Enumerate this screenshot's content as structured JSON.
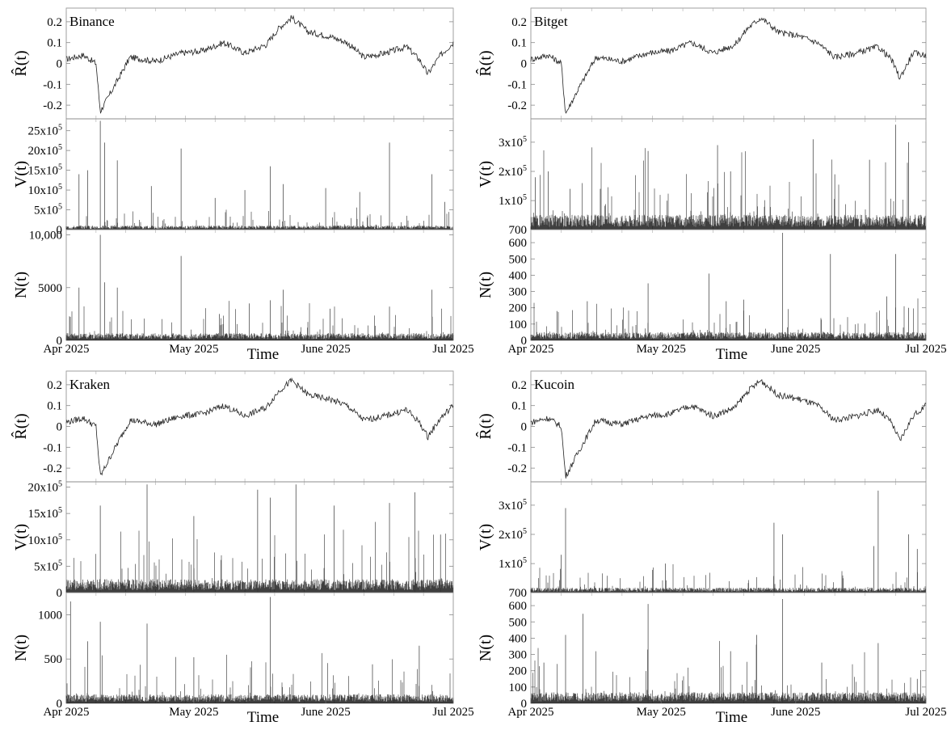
{
  "chart_data": [
    {
      "type": "line",
      "exchange": "Binance",
      "x_tick_labels": [
        "Apr 2025",
        "May 2025",
        "June 2025",
        "Jul 2025"
      ],
      "xlabel": "Time",
      "x_range": [
        "2025-04-01",
        "2025-07-01"
      ],
      "panels": [
        {
          "metric": "returns",
          "ylabel": "R̂(t)",
          "ylim": [
            -0.25,
            0.25
          ],
          "yticks": [
            -0.2,
            -0.1,
            0,
            0.1,
            0.2
          ],
          "ytick_labels": [
            "-0.2",
            "-0.1",
            "0",
            "0.1",
            "0.2"
          ],
          "x": [
            "2025-04-01",
            "2025-04-05",
            "2025-04-08",
            "2025-04-09",
            "2025-04-12",
            "2025-04-16",
            "2025-04-22",
            "2025-04-28",
            "2025-05-03",
            "2025-05-08",
            "2025-05-13",
            "2025-05-18",
            "2025-05-21",
            "2025-05-24",
            "2025-05-28",
            "2025-06-02",
            "2025-06-06",
            "2025-06-10",
            "2025-06-15",
            "2025-06-20",
            "2025-06-23",
            "2025-06-25",
            "2025-06-28",
            "2025-07-01"
          ],
          "values": [
            0.02,
            0.04,
            0.0,
            -0.23,
            -0.12,
            0.03,
            0.01,
            0.05,
            0.06,
            0.1,
            0.05,
            0.09,
            0.17,
            0.22,
            0.15,
            0.13,
            0.1,
            0.03,
            0.05,
            0.08,
            0.02,
            -0.05,
            0.04,
            0.1
          ]
        },
        {
          "metric": "volume",
          "ylabel": "V(t)",
          "ylim": [
            0,
            2800000
          ],
          "yticks": [
            0,
            500000,
            1000000,
            1500000,
            2000000,
            2500000
          ],
          "ytick_labels": [
            "0",
            "5x10^5",
            "10x10^5",
            "15x10^5",
            "20x10^5",
            "25x10^5"
          ],
          "baseline": 60000,
          "spikes": [
            {
              "x": "2025-04-04",
              "value": 1400000
            },
            {
              "x": "2025-04-06",
              "value": 1500000
            },
            {
              "x": "2025-04-09",
              "value": 2750000
            },
            {
              "x": "2025-04-10",
              "value": 2200000
            },
            {
              "x": "2025-04-13",
              "value": 1750000
            },
            {
              "x": "2025-04-21",
              "value": 1100000
            },
            {
              "x": "2025-04-28",
              "value": 2050000
            },
            {
              "x": "2025-05-06",
              "value": 800000
            },
            {
              "x": "2025-05-13",
              "value": 1000000
            },
            {
              "x": "2025-05-19",
              "value": 1600000
            },
            {
              "x": "2025-05-22",
              "value": 1150000
            },
            {
              "x": "2025-06-01",
              "value": 1050000
            },
            {
              "x": "2025-06-09",
              "value": 950000
            },
            {
              "x": "2025-06-16",
              "value": 2200000
            },
            {
              "x": "2025-06-26",
              "value": 1400000
            },
            {
              "x": "2025-06-29",
              "value": 700000
            }
          ]
        },
        {
          "metric": "trades",
          "ylabel": "N(t)",
          "ylim": [
            0,
            10500
          ],
          "yticks": [
            0,
            5000,
            10000
          ],
          "ytick_labels": [
            "0",
            "5000",
            "10,000"
          ],
          "baseline": 400,
          "spikes": [
            {
              "x": "2025-04-04",
              "value": 5000
            },
            {
              "x": "2025-04-09",
              "value": 10000
            },
            {
              "x": "2025-04-10",
              "value": 5500
            },
            {
              "x": "2025-04-13",
              "value": 5000
            },
            {
              "x": "2025-04-28",
              "value": 8000
            },
            {
              "x": "2025-05-07",
              "value": 2500
            },
            {
              "x": "2025-05-14",
              "value": 3500
            },
            {
              "x": "2025-05-19",
              "value": 3800
            },
            {
              "x": "2025-05-22",
              "value": 4800
            },
            {
              "x": "2025-06-02",
              "value": 3000
            },
            {
              "x": "2025-06-16",
              "value": 3200
            },
            {
              "x": "2025-06-26",
              "value": 4800
            }
          ]
        }
      ]
    },
    {
      "type": "line",
      "exchange": "Bitget",
      "x_tick_labels": [
        "Apr 2025",
        "May 2025",
        "June 2025",
        "Jul 2025"
      ],
      "xlabel": "Time",
      "x_range": [
        "2025-04-01",
        "2025-07-01"
      ],
      "panels": [
        {
          "metric": "returns",
          "ylabel": "R̂(t)",
          "ylim": [
            -0.25,
            0.25
          ],
          "yticks": [
            -0.2,
            -0.1,
            0,
            0.1,
            0.2
          ],
          "ytick_labels": [
            "-0.2",
            "-0.1",
            "0",
            "0.1",
            "0.2"
          ],
          "x": [
            "2025-04-01",
            "2025-04-05",
            "2025-04-08",
            "2025-04-09",
            "2025-04-12",
            "2025-04-16",
            "2025-04-22",
            "2025-04-28",
            "2025-05-03",
            "2025-05-08",
            "2025-05-13",
            "2025-05-18",
            "2025-05-21",
            "2025-05-24",
            "2025-05-28",
            "2025-06-02",
            "2025-06-06",
            "2025-06-10",
            "2025-06-15",
            "2025-06-20",
            "2025-06-23",
            "2025-06-25",
            "2025-06-28",
            "2025-07-01"
          ],
          "values": [
            0.02,
            0.04,
            0.0,
            -0.24,
            -0.12,
            0.03,
            0.01,
            0.05,
            0.06,
            0.1,
            0.05,
            0.09,
            0.17,
            0.22,
            0.15,
            0.13,
            0.1,
            0.03,
            0.05,
            0.08,
            0.02,
            -0.07,
            0.05,
            0.04
          ]
        },
        {
          "metric": "volume",
          "ylabel": "V(t)",
          "ylim": [
            700,
            380000
          ],
          "yticks": [
            700,
            100000,
            200000,
            300000
          ],
          "ytick_labels": [
            "700",
            "1x10^5",
            "2x10^5",
            "3x10^5"
          ],
          "baseline": 30000,
          "spikes": [
            {
              "x": "2025-04-02",
              "value": 180000
            },
            {
              "x": "2025-04-05",
              "value": 200000
            },
            {
              "x": "2025-04-10",
              "value": 140000
            },
            {
              "x": "2025-04-17",
              "value": 140000
            },
            {
              "x": "2025-04-28",
              "value": 270000
            },
            {
              "x": "2025-05-14",
              "value": 290000
            },
            {
              "x": "2025-05-17",
              "value": 200000
            },
            {
              "x": "2025-06-05",
              "value": 310000
            },
            {
              "x": "2025-06-10",
              "value": 190000
            },
            {
              "x": "2025-06-18",
              "value": 240000
            },
            {
              "x": "2025-06-24",
              "value": 360000
            },
            {
              "x": "2025-06-27",
              "value": 300000
            }
          ]
        },
        {
          "metric": "trades",
          "ylabel": "N(t)",
          "ylim": [
            0,
            680
          ],
          "yticks": [
            0,
            100,
            200,
            300,
            400,
            500,
            600
          ],
          "ytick_labels": [
            "0",
            "100",
            "200",
            "300",
            "400",
            "500",
            "600"
          ],
          "baseline": 30,
          "spikes": [
            {
              "x": "2025-04-07",
              "value": 180
            },
            {
              "x": "2025-04-14",
              "value": 240
            },
            {
              "x": "2025-04-28",
              "value": 350
            },
            {
              "x": "2025-05-12",
              "value": 410
            },
            {
              "x": "2025-05-16",
              "value": 240
            },
            {
              "x": "2025-05-20",
              "value": 250
            },
            {
              "x": "2025-05-29",
              "value": 660
            },
            {
              "x": "2025-06-09",
              "value": 530
            },
            {
              "x": "2025-06-22",
              "value": 270
            },
            {
              "x": "2025-06-24",
              "value": 530
            },
            {
              "x": "2025-06-27",
              "value": 200
            }
          ]
        }
      ]
    },
    {
      "type": "line",
      "exchange": "Kraken",
      "x_tick_labels": [
        "Apr 2025",
        "May 2025",
        "June 2025",
        "Jul 2025"
      ],
      "xlabel": "Time",
      "x_range": [
        "2025-04-01",
        "2025-07-01"
      ],
      "panels": [
        {
          "metric": "returns",
          "ylabel": "R̂(t)",
          "ylim": [
            -0.25,
            0.25
          ],
          "yticks": [
            -0.2,
            -0.1,
            0,
            0.1,
            0.2
          ],
          "ytick_labels": [
            "-0.2",
            "-0.1",
            "0",
            "0.1",
            "0.2"
          ],
          "x": [
            "2025-04-01",
            "2025-04-05",
            "2025-04-08",
            "2025-04-09",
            "2025-04-12",
            "2025-04-16",
            "2025-04-22",
            "2025-04-28",
            "2025-05-03",
            "2025-05-08",
            "2025-05-13",
            "2025-05-18",
            "2025-05-21",
            "2025-05-24",
            "2025-05-28",
            "2025-06-02",
            "2025-06-06",
            "2025-06-10",
            "2025-06-15",
            "2025-06-20",
            "2025-06-23",
            "2025-06-25",
            "2025-06-28",
            "2025-07-01"
          ],
          "values": [
            0.02,
            0.04,
            0.0,
            -0.24,
            -0.12,
            0.03,
            0.01,
            0.05,
            0.06,
            0.1,
            0.05,
            0.09,
            0.17,
            0.22,
            0.15,
            0.13,
            0.1,
            0.03,
            0.05,
            0.08,
            0.02,
            -0.05,
            0.04,
            0.1
          ]
        },
        {
          "metric": "volume",
          "ylabel": "V(t)",
          "ylim": [
            0,
            2100000
          ],
          "yticks": [
            0,
            500000,
            1000000,
            1500000,
            2000000
          ],
          "ytick_labels": [
            "0",
            "5x10^5",
            "10x10^5",
            "15x10^5",
            "20x10^5"
          ],
          "baseline": 150000,
          "spikes": [
            {
              "x": "2025-04-09",
              "value": 1650000
            },
            {
              "x": "2025-04-20",
              "value": 2050000
            },
            {
              "x": "2025-05-01",
              "value": 1450000
            },
            {
              "x": "2025-05-16",
              "value": 1950000
            },
            {
              "x": "2025-05-19",
              "value": 1800000
            },
            {
              "x": "2025-05-25",
              "value": 2050000
            },
            {
              "x": "2025-06-03",
              "value": 1650000
            },
            {
              "x": "2025-06-16",
              "value": 1700000
            },
            {
              "x": "2025-06-22",
              "value": 1900000
            },
            {
              "x": "2025-06-28",
              "value": 1100000
            }
          ]
        },
        {
          "metric": "trades",
          "ylabel": "N(t)",
          "ylim": [
            0,
            1250
          ],
          "yticks": [
            0,
            500,
            1000
          ],
          "ytick_labels": [
            "0",
            "500",
            "1000"
          ],
          "baseline": 60,
          "spikes": [
            {
              "x": "2025-04-02",
              "value": 1150
            },
            {
              "x": "2025-04-06",
              "value": 700
            },
            {
              "x": "2025-04-09",
              "value": 920
            },
            {
              "x": "2025-04-20",
              "value": 900
            },
            {
              "x": "2025-05-01",
              "value": 520
            },
            {
              "x": "2025-05-19",
              "value": 1200
            },
            {
              "x": "2025-06-12",
              "value": 440
            },
            {
              "x": "2025-06-23",
              "value": 650
            }
          ]
        }
      ]
    },
    {
      "type": "line",
      "exchange": "Kucoin",
      "x_tick_labels": [
        "Apr 2025",
        "May 2025",
        "June 2025",
        "Jul 2025"
      ],
      "xlabel": "Time",
      "x_range": [
        "2025-04-01",
        "2025-07-01"
      ],
      "panels": [
        {
          "metric": "returns",
          "ylabel": "R̂(t)",
          "ylim": [
            -0.25,
            0.25
          ],
          "yticks": [
            -0.2,
            -0.1,
            0,
            0.1,
            0.2
          ],
          "ytick_labels": [
            "-0.2",
            "-0.1",
            "0",
            "0.1",
            "0.2"
          ],
          "x": [
            "2025-04-01",
            "2025-04-05",
            "2025-04-08",
            "2025-04-09",
            "2025-04-12",
            "2025-04-16",
            "2025-04-22",
            "2025-04-28",
            "2025-05-03",
            "2025-05-08",
            "2025-05-13",
            "2025-05-18",
            "2025-05-21",
            "2025-05-24",
            "2025-05-28",
            "2025-06-02",
            "2025-06-06",
            "2025-06-10",
            "2025-06-15",
            "2025-06-20",
            "2025-06-23",
            "2025-06-25",
            "2025-06-28",
            "2025-07-01"
          ],
          "values": [
            0.02,
            0.04,
            0.0,
            -0.24,
            -0.12,
            0.03,
            0.01,
            0.05,
            0.06,
            0.1,
            0.05,
            0.09,
            0.17,
            0.22,
            0.15,
            0.13,
            0.1,
            0.03,
            0.05,
            0.08,
            0.02,
            -0.07,
            0.05,
            0.1
          ]
        },
        {
          "metric": "volume",
          "ylabel": "V(t)",
          "ylim": [
            700,
            380000
          ],
          "yticks": [
            700,
            100000,
            200000,
            300000
          ],
          "ytick_labels": [
            "700",
            "1x10^5",
            "2x10^5",
            "3x10^5"
          ],
          "baseline": 10000,
          "spikes": [
            {
              "x": "2025-04-09",
              "value": 290000
            },
            {
              "x": "2025-04-08",
              "value": 130000
            },
            {
              "x": "2025-05-02",
              "value": 100000
            },
            {
              "x": "2025-05-27",
              "value": 240000
            },
            {
              "x": "2025-05-29",
              "value": 200000
            },
            {
              "x": "2025-06-20",
              "value": 350000
            },
            {
              "x": "2025-06-19",
              "value": 160000
            },
            {
              "x": "2025-06-27",
              "value": 200000
            },
            {
              "x": "2025-06-29",
              "value": 150000
            }
          ]
        },
        {
          "metric": "trades",
          "ylabel": "N(t)",
          "ylim": [
            0,
            680
          ],
          "yticks": [
            0,
            100,
            200,
            300,
            400,
            500,
            600
          ],
          "ytick_labels": [
            "0",
            "100",
            "200",
            "300",
            "400",
            "500",
            "600"
          ],
          "baseline": 40,
          "spikes": [
            {
              "x": "2025-04-04",
              "value": 250
            },
            {
              "x": "2025-04-09",
              "value": 420
            },
            {
              "x": "2025-04-13",
              "value": 550
            },
            {
              "x": "2025-04-28",
              "value": 610
            },
            {
              "x": "2025-05-17",
              "value": 320
            },
            {
              "x": "2025-05-23",
              "value": 420
            },
            {
              "x": "2025-05-29",
              "value": 640
            },
            {
              "x": "2025-06-07",
              "value": 250
            },
            {
              "x": "2025-06-20",
              "value": 370
            },
            {
              "x": "2025-06-29",
              "value": 150
            }
          ]
        }
      ]
    }
  ]
}
